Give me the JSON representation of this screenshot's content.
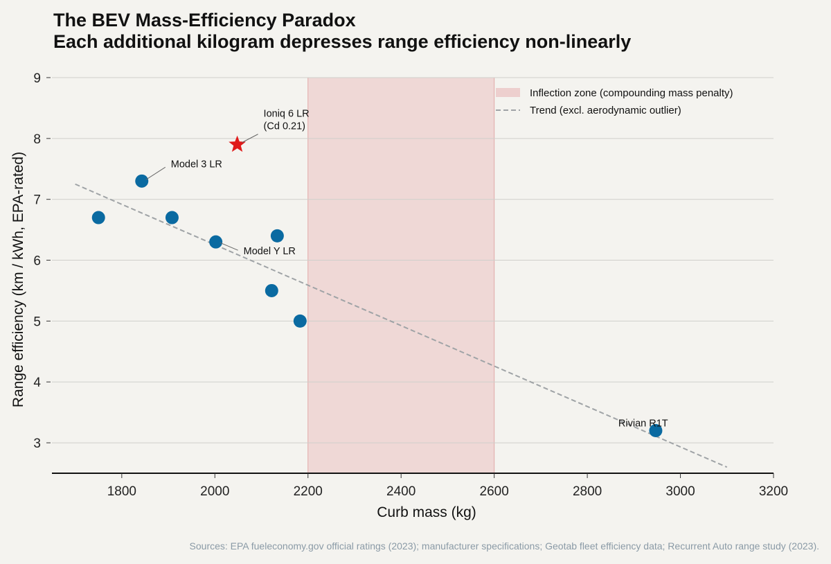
{
  "chart_data": {
    "type": "scatter",
    "title": "The BEV Mass-Efficiency Paradox",
    "subtitle": "Each additional kilogram depresses range efficiency non-linearly",
    "xlabel": "Curb mass (kg)",
    "ylabel": "Range efficiency (km / kWh, EPA-rated)",
    "xlim": [
      1650,
      3200
    ],
    "ylim": [
      2.5,
      9
    ],
    "xticks": [
      1800,
      2000,
      2200,
      2400,
      2600,
      2800,
      3000,
      3200
    ],
    "yticks": [
      3,
      4,
      5,
      6,
      7,
      8,
      9
    ],
    "grid": "horizontal",
    "legend_position": "top-right",
    "colors": {
      "points": "#0a6aa1",
      "outlier": "#e01a1a",
      "trend": "#9fa3a6",
      "zone": "#e8b8b8",
      "background": "#f4f3ef"
    },
    "points": [
      {
        "x": 1750,
        "y": 6.7,
        "label": ""
      },
      {
        "x": 1843,
        "y": 7.3,
        "label": "Model 3 LR"
      },
      {
        "x": 1908,
        "y": 6.7,
        "label": ""
      },
      {
        "x": 2002,
        "y": 6.3,
        "label": "Model Y LR"
      },
      {
        "x": 2134,
        "y": 6.4,
        "label": ""
      },
      {
        "x": 2122,
        "y": 5.5,
        "label": ""
      },
      {
        "x": 2183,
        "y": 5.0,
        "label": ""
      },
      {
        "x": 2947,
        "y": 3.2,
        "label": "Rivian R1T"
      }
    ],
    "outlier": {
      "x": 2048,
      "y": 7.9,
      "label": "Ioniq 6 LR",
      "label2": "(Cd 0.21)"
    },
    "trend": {
      "name": "Trend (excl. aerodynamic outlier)",
      "x": [
        1700,
        3100
      ],
      "y": [
        7.25,
        2.6
      ]
    },
    "zone": {
      "name": "Inflection zone (compounding mass penalty)",
      "x": [
        2200,
        2600
      ]
    }
  },
  "source": "Sources: EPA fueleconomy.gov official ratings (2023); manufacturer specifications; Geotab fleet efficiency data; Recurrent Auto range study (2023)."
}
